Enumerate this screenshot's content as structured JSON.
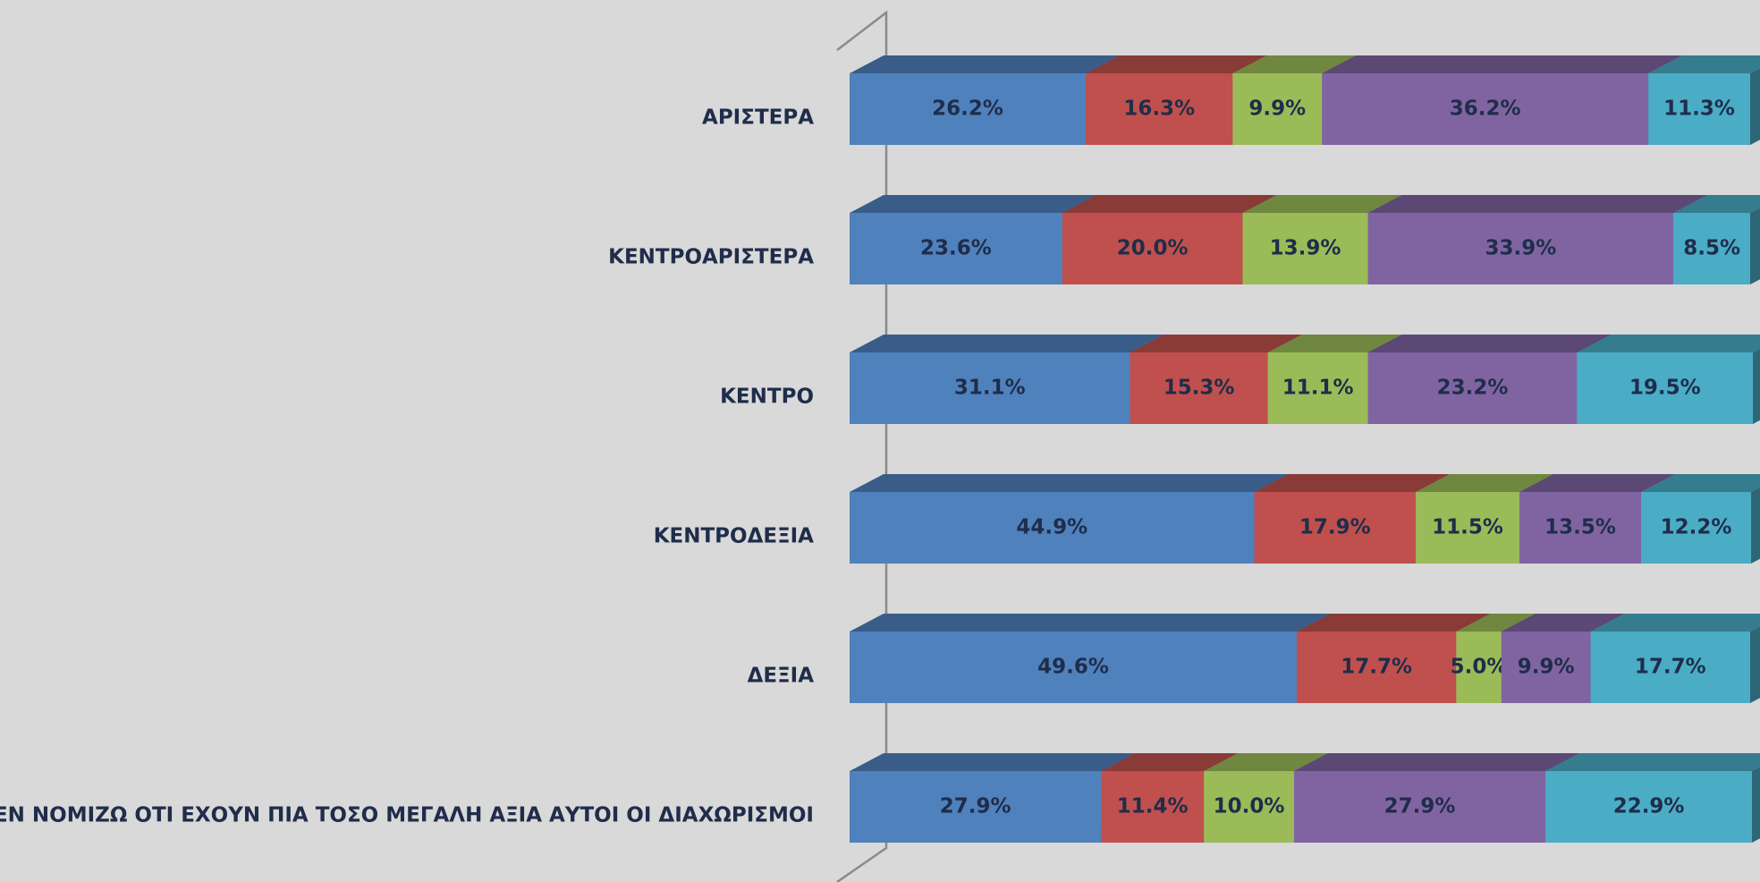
{
  "chart_data": {
    "type": "bar3d_stacked_horizontal",
    "categories": [
      "ΑΡΙΣΤΕΡΑ",
      "ΚΕΝΤΡΟΑΡΙΣΤΕΡΑ",
      "ΚΕΝΤΡΟ",
      "ΚΕΝΤΡΟΔΕΞΙΑ",
      "ΔΕΞΙΑ",
      "ΔΕΝ ΝΟΜΙΖΩ ΟΤΙ ΕΧΟΥΝ ΠΙΑ ΤΟΣΟ ΜΕΓΑΛΗ ΑΞΙΑ ΑΥΤΟΙ ΟΙ ΔΙΑΧΩΡΙΣΜΟΙ"
    ],
    "xlim": [
      0,
      100
    ],
    "series": [
      {
        "color": "#4f81bd",
        "values": [
          26.2,
          23.6,
          31.1,
          44.9,
          49.6,
          27.9
        ],
        "value_labels": [
          "26.2%",
          "23.6%",
          "31.1%",
          "44.9%",
          "49.6%",
          "27.9%"
        ]
      },
      {
        "color": "#c0504d",
        "values": [
          16.3,
          20.0,
          15.3,
          17.9,
          17.7,
          11.4
        ],
        "value_labels": [
          "16.3%",
          "20.0%",
          "15.3%",
          "17.9%",
          "17.7%",
          "11.4%"
        ]
      },
      {
        "color": "#9bbb59",
        "values": [
          9.9,
          13.9,
          11.1,
          11.5,
          5.0,
          10.0
        ],
        "value_labels": [
          "9.9%",
          "13.9%",
          "11.1%",
          "11.5%",
          "5.0%",
          "10.0%"
        ]
      },
      {
        "color": "#8064a2",
        "values": [
          36.2,
          33.9,
          23.2,
          13.5,
          9.9,
          27.9
        ],
        "value_labels": [
          "36.2%",
          "33.9%",
          "23.2%",
          "13.5%",
          "9.9%",
          "27.9%"
        ]
      },
      {
        "color": "#4bacc6",
        "values": [
          11.3,
          8.5,
          19.5,
          12.2,
          17.7,
          22.9
        ],
        "value_labels": [
          "11.3%",
          "8.5%",
          "19.5%",
          "12.2%",
          "17.7%",
          "22.9%"
        ]
      }
    ]
  }
}
